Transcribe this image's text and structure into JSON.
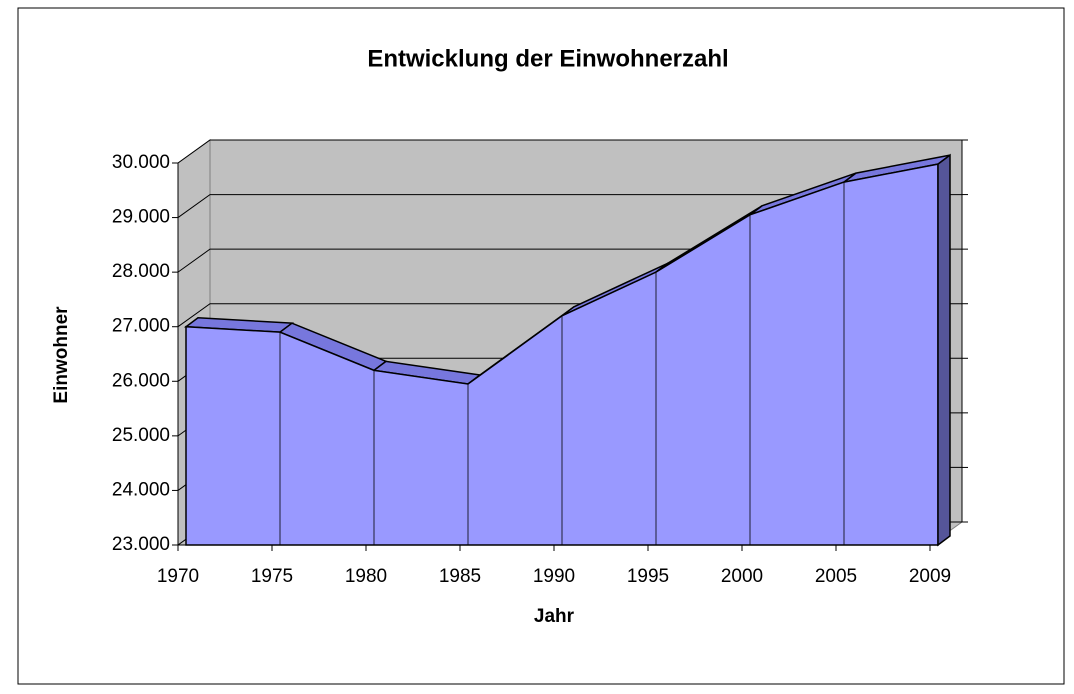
{
  "chart_data": {
    "type": "area3d",
    "title": "Entwicklung der Einwohnerzahl",
    "x_label": "Jahr",
    "y_label": "Einwohner",
    "categories": [
      "1970",
      "1975",
      "1980",
      "1985",
      "1990",
      "1995",
      "2000",
      "2005",
      "2009"
    ],
    "values": [
      27000,
      26900,
      26200,
      25950,
      27200,
      28000,
      29050,
      29650,
      29980
    ],
    "color": "#9999ff",
    "ylim": [
      23000,
      30000
    ],
    "yticks": [
      {
        "value": 23000,
        "label": "23.000"
      },
      {
        "value": 24000,
        "label": "24.000"
      },
      {
        "value": 25000,
        "label": "25.000"
      },
      {
        "value": 26000,
        "label": "26.000"
      },
      {
        "value": 27000,
        "label": "27.000"
      },
      {
        "value": 28000,
        "label": "28.000"
      },
      {
        "value": 29000,
        "label": "29.000"
      },
      {
        "value": 30000,
        "label": "30.000"
      }
    ],
    "grid": true
  }
}
